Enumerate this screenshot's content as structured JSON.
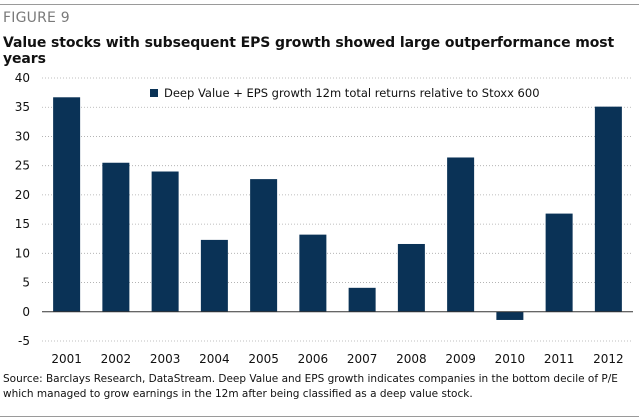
{
  "figure_label": "FIGURE 9",
  "title": "Value stocks with subsequent EPS growth showed large outperformance most years",
  "source_note": "Source: Barclays Research, DataStream. Deep Value and EPS growth indicates companies in the bottom decile of P/E which managed to grow earnings in the 12m after being classified as a deep value stock.",
  "colors": {
    "bar": "#0a3256",
    "grid": "#aaaaaa",
    "rule": "#9a9a9a"
  },
  "chart_data": {
    "type": "bar",
    "title": "",
    "xlabel": "",
    "ylabel": "",
    "categories": [
      "2001",
      "2002",
      "2003",
      "2004",
      "2005",
      "2006",
      "2007",
      "2008",
      "2009",
      "2010",
      "2011",
      "2012"
    ],
    "series": [
      {
        "name": "Deep Value + EPS growth 12m total returns relative to Stoxx 600",
        "values": [
          36.7,
          25.5,
          24.0,
          12.3,
          22.7,
          13.2,
          4.1,
          11.6,
          26.4,
          -1.4,
          16.8,
          35.1
        ]
      }
    ],
    "ylim": [
      -5,
      40
    ],
    "yticks": [
      -5,
      0,
      5,
      10,
      15,
      20,
      25,
      30,
      35,
      40
    ],
    "grid": "horizontal",
    "legend_position": "top-right"
  }
}
